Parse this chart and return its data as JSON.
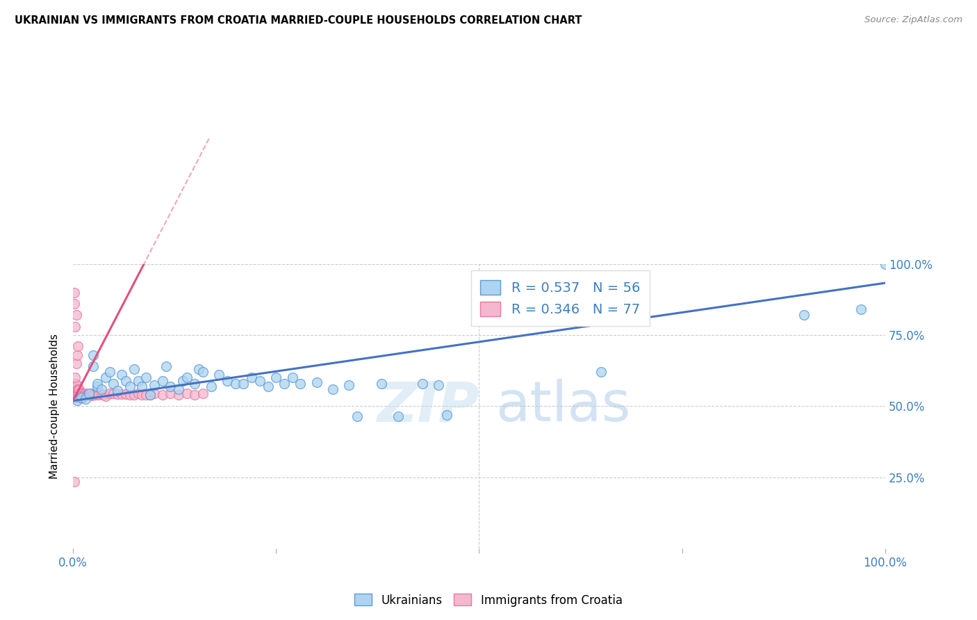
{
  "title": "UKRAINIAN VS IMMIGRANTS FROM CROATIA MARRIED-COUPLE HOUSEHOLDS CORRELATION CHART",
  "source": "Source: ZipAtlas.com",
  "ylabel": "Married-couple Households",
  "watermark": "ZIPatlas",
  "blue_R": 0.537,
  "blue_N": 56,
  "pink_R": 0.346,
  "pink_N": 77,
  "legend_blue": "Ukrainians",
  "legend_pink": "Immigrants from Croatia",
  "blue_color": "#aed4f0",
  "blue_edge_color": "#5b9bd5",
  "blue_line_color": "#4472c4",
  "pink_color": "#f4b8ce",
  "pink_edge_color": "#e879a0",
  "pink_line_color": "#e05080",
  "text_color": "#3d7fbf",
  "blue_points_x": [
    0.005,
    0.01,
    0.015,
    0.02,
    0.025,
    0.025,
    0.03,
    0.03,
    0.035,
    0.04,
    0.045,
    0.05,
    0.055,
    0.06,
    0.065,
    0.07,
    0.075,
    0.08,
    0.085,
    0.09,
    0.095,
    0.1,
    0.11,
    0.115,
    0.12,
    0.13,
    0.135,
    0.14,
    0.15,
    0.155,
    0.16,
    0.17,
    0.18,
    0.19,
    0.2,
    0.21,
    0.22,
    0.23,
    0.24,
    0.25,
    0.26,
    0.27,
    0.28,
    0.3,
    0.32,
    0.34,
    0.35,
    0.38,
    0.4,
    0.43,
    0.45,
    0.46,
    0.65,
    0.9,
    0.97,
    1.0
  ],
  "blue_points_y": [
    0.52,
    0.53,
    0.525,
    0.545,
    0.64,
    0.68,
    0.57,
    0.58,
    0.56,
    0.6,
    0.62,
    0.58,
    0.555,
    0.61,
    0.59,
    0.57,
    0.63,
    0.59,
    0.57,
    0.6,
    0.54,
    0.575,
    0.59,
    0.64,
    0.57,
    0.56,
    0.59,
    0.6,
    0.58,
    0.63,
    0.62,
    0.57,
    0.61,
    0.59,
    0.58,
    0.58,
    0.6,
    0.59,
    0.57,
    0.6,
    0.58,
    0.6,
    0.58,
    0.585,
    0.56,
    0.575,
    0.465,
    0.58,
    0.465,
    0.58,
    0.575,
    0.47,
    0.62,
    0.82,
    0.84,
    1.0
  ],
  "pink_points_x": [
    0.002,
    0.002,
    0.002,
    0.003,
    0.003,
    0.003,
    0.003,
    0.004,
    0.004,
    0.004,
    0.004,
    0.005,
    0.005,
    0.005,
    0.005,
    0.006,
    0.006,
    0.006,
    0.007,
    0.007,
    0.007,
    0.008,
    0.008,
    0.008,
    0.009,
    0.009,
    0.01,
    0.01,
    0.011,
    0.011,
    0.012,
    0.012,
    0.013,
    0.014,
    0.015,
    0.016,
    0.017,
    0.018,
    0.019,
    0.02,
    0.021,
    0.022,
    0.023,
    0.025,
    0.027,
    0.03,
    0.032,
    0.035,
    0.038,
    0.04,
    0.045,
    0.05,
    0.055,
    0.06,
    0.065,
    0.07,
    0.075,
    0.08,
    0.085,
    0.09,
    0.095,
    0.1,
    0.11,
    0.12,
    0.13,
    0.14,
    0.15,
    0.16,
    0.003,
    0.004,
    0.005,
    0.006,
    0.003,
    0.004,
    0.002,
    0.002,
    0.002
  ],
  "pink_points_y": [
    0.53,
    0.545,
    0.56,
    0.53,
    0.55,
    0.565,
    0.58,
    0.53,
    0.545,
    0.56,
    0.575,
    0.53,
    0.545,
    0.56,
    0.575,
    0.53,
    0.545,
    0.56,
    0.53,
    0.545,
    0.56,
    0.53,
    0.545,
    0.558,
    0.53,
    0.548,
    0.53,
    0.545,
    0.53,
    0.545,
    0.53,
    0.545,
    0.54,
    0.54,
    0.545,
    0.54,
    0.54,
    0.54,
    0.54,
    0.54,
    0.54,
    0.545,
    0.538,
    0.54,
    0.54,
    0.542,
    0.54,
    0.542,
    0.54,
    0.535,
    0.545,
    0.545,
    0.542,
    0.542,
    0.542,
    0.54,
    0.54,
    0.545,
    0.54,
    0.54,
    0.54,
    0.545,
    0.54,
    0.545,
    0.54,
    0.545,
    0.54,
    0.545,
    0.6,
    0.65,
    0.68,
    0.71,
    0.78,
    0.82,
    0.86,
    0.9,
    0.235
  ]
}
